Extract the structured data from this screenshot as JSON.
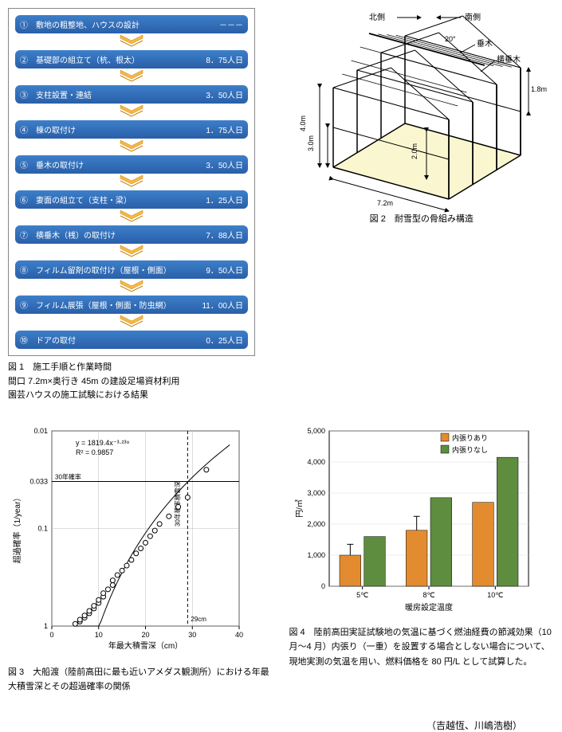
{
  "fig1": {
    "caption_title": "図 1　施工手順と作業時間",
    "caption_sub1": "間口 7.2m×奥行き 45m の建設足場資材利用",
    "caption_sub2": "園芸ハウスの施工試験における結果",
    "steps": [
      {
        "n": "①",
        "label": "敷地の粗整地、ハウスの設計",
        "val": "－－－"
      },
      {
        "n": "②",
        "label": "基礎部の組立て（杭、根太）",
        "val": "8．75人日"
      },
      {
        "n": "③",
        "label": "支柱設置・連結",
        "val": "3．50人日"
      },
      {
        "n": "④",
        "label": "棟の取付け",
        "val": "1．75人日"
      },
      {
        "n": "⑤",
        "label": "垂木の取付け",
        "val": "3．50人日"
      },
      {
        "n": "⑥",
        "label": "妻面の組立て（支柱・梁）",
        "val": "1．25人日"
      },
      {
        "n": "⑦",
        "label": "横垂木（桟）の取付け",
        "val": "7．88人日"
      },
      {
        "n": "⑧",
        "label": "フィルム留剤の取付け（屋根・側面）",
        "val": "9．50人日"
      },
      {
        "n": "⑨",
        "label": "フィルム展張（屋根・側面・防虫網）",
        "val": "11．00人日"
      },
      {
        "n": "⑩",
        "label": "ドアの取付",
        "val": "0．25人日"
      }
    ],
    "chevron_color": "#f6b847",
    "chevron_stroke": "#c77f00",
    "step_bg_top": "#3d7fc9",
    "step_bg_bot": "#2a5fa9",
    "step_text": "#ffffff"
  },
  "fig2": {
    "caption": "図 2　耐雪型の骨組み構造",
    "labels": {
      "north": "北側",
      "south": "南側",
      "angle": "20°",
      "rafter": "垂木",
      "cross_rafter": "横垂木"
    },
    "dims": {
      "total_h": "4.0m",
      "side_h": "3.0m",
      "inner_h": "2.0m",
      "width": "7.2m",
      "eave_h": "1.8m"
    },
    "floor_fill": "#faf7d0",
    "frame_color": "#000000"
  },
  "fig3": {
    "caption": "図 3　大船渡（陸前高田に最も近いアメダス観測所）における年最大積雪深とその超過確率の関係",
    "xlabel": "年最大積雪深（cm）",
    "ylabel": "超過確率（1/year）",
    "eq": "y = 1819.4x⁻³·²³⁹",
    "r2": "R² = 0.9857",
    "ann30": "30年確率",
    "ann30v": "30年確率積雪深",
    "annx": "29cm",
    "xlim": [
      0,
      40
    ],
    "xticks": [
      0,
      10,
      20,
      30,
      40
    ],
    "yticks": [
      0.01,
      0.033,
      0.1,
      1
    ],
    "ytick_labels": [
      "0.01",
      "0.033",
      "0.1",
      "1"
    ],
    "points": [
      [
        5,
        0.95
      ],
      [
        6,
        0.9
      ],
      [
        6,
        0.86
      ],
      [
        7,
        0.82
      ],
      [
        7,
        0.78
      ],
      [
        8,
        0.74
      ],
      [
        8,
        0.7
      ],
      [
        9,
        0.66
      ],
      [
        9,
        0.62
      ],
      [
        10,
        0.58
      ],
      [
        10,
        0.54
      ],
      [
        11,
        0.5
      ],
      [
        11,
        0.46
      ],
      [
        12,
        0.42
      ],
      [
        13,
        0.38
      ],
      [
        13,
        0.34
      ],
      [
        14,
        0.3
      ],
      [
        15,
        0.27
      ],
      [
        16,
        0.24
      ],
      [
        17,
        0.21
      ],
      [
        18,
        0.18
      ],
      [
        19,
        0.16
      ],
      [
        20,
        0.14
      ],
      [
        21,
        0.12
      ],
      [
        22,
        0.105
      ],
      [
        23,
        0.09
      ],
      [
        25,
        0.075
      ],
      [
        27,
        0.06
      ],
      [
        29,
        0.048
      ],
      [
        33,
        0.025
      ]
    ],
    "marker": "circle",
    "marker_color": "#ffffff",
    "marker_stroke": "#000",
    "marker_size": 3,
    "grid_color": "#bbb",
    "axis_color": "#000"
  },
  "fig4": {
    "title": "",
    "xlabel": "暖房設定温度",
    "ylabel": "円/㎡",
    "legend": [
      {
        "label": "内張りあり",
        "color": "#e38b2f"
      },
      {
        "label": "内張りなし",
        "color": "#5f8d3f"
      }
    ],
    "categories": [
      "5℃",
      "8℃",
      "10℃"
    ],
    "series_ari": [
      1000,
      1800,
      2700
    ],
    "series_nashi": [
      1600,
      2850,
      4150
    ],
    "err_ari": [
      350,
      450,
      0
    ],
    "err_nashi": [
      0,
      0,
      0
    ],
    "ylim": [
      0,
      5000
    ],
    "ytick_step": 1000,
    "bar_width": 0.32,
    "border_color": "#000",
    "grid_color": "#dcdcdc",
    "background": "#ffffff",
    "caption": "図 4　陸前高田実証試験地の気温に基づく燃油経費の節減効果（10 月～4 月）内張り（一重）を設置する場合としない場合について、現地実測の気温を用い、燃料価格を 80 円/L として試算した。"
  },
  "authors": "（吉越恆、川嶋浩樹）"
}
